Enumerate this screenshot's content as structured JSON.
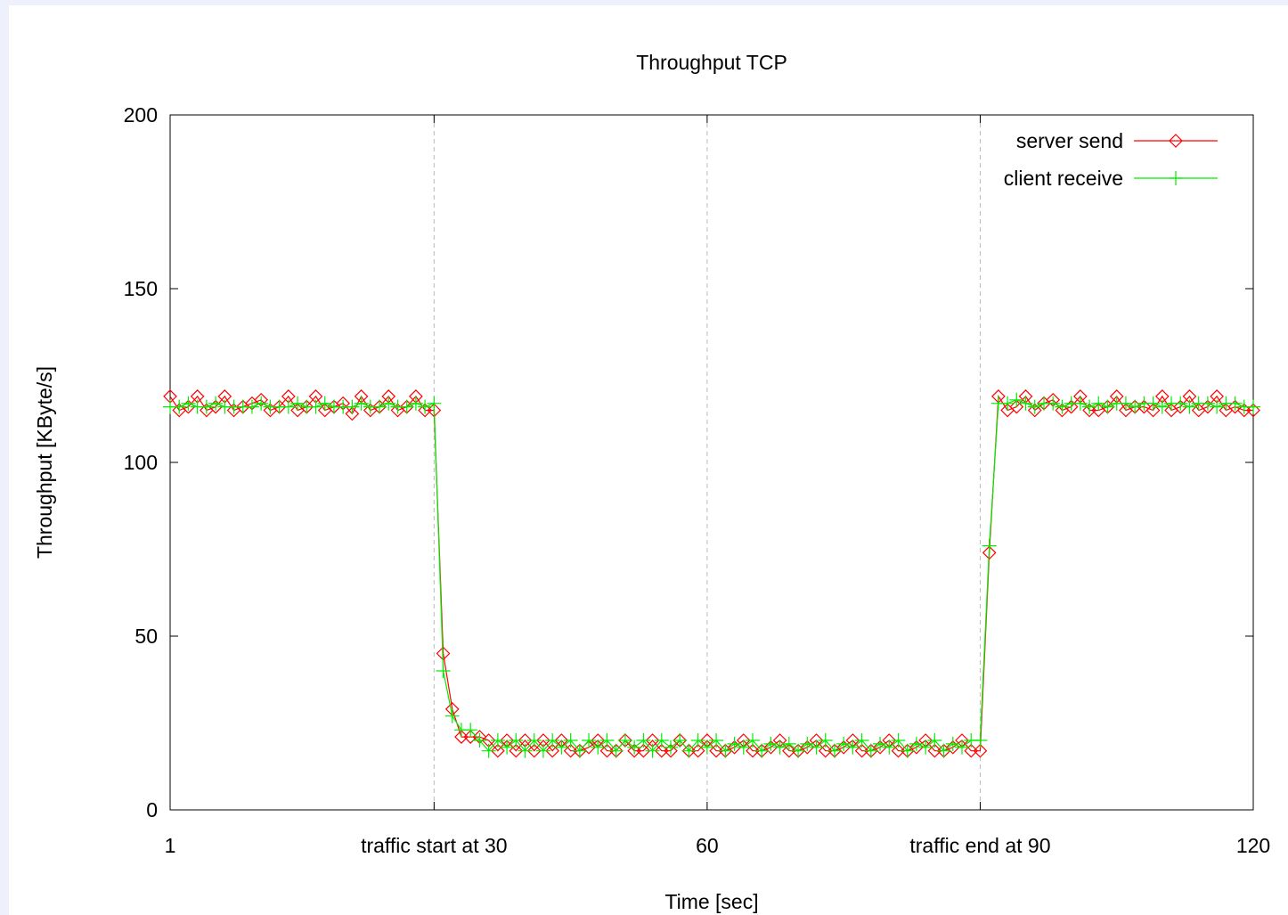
{
  "chart_data": {
    "type": "line",
    "title": "Throughput TCP",
    "xlabel": "Time [sec]",
    "ylabel": "Throughput [KByte/s]",
    "xlim": [
      1,
      120
    ],
    "ylim": [
      0,
      200
    ],
    "x_ticks": [
      {
        "value": 1,
        "label": "1"
      },
      {
        "value": 30,
        "label": "traffic start at 30"
      },
      {
        "value": 60,
        "label": "60"
      },
      {
        "value": 90,
        "label": "traffic end at 90"
      },
      {
        "value": 120,
        "label": "120"
      }
    ],
    "y_ticks": [
      {
        "value": 0,
        "label": "0"
      },
      {
        "value": 50,
        "label": "50"
      },
      {
        "value": 100,
        "label": "100"
      },
      {
        "value": 150,
        "label": "150"
      },
      {
        "value": 200,
        "label": "200"
      }
    ],
    "vertical_grid_at": [
      30,
      60,
      90
    ],
    "legend_position": "top-right",
    "series": [
      {
        "name": "server send",
        "color": "#ff0000",
        "marker": "diamond",
        "x": [
          1,
          2,
          3,
          4,
          5,
          6,
          7,
          8,
          9,
          10,
          11,
          12,
          13,
          14,
          15,
          16,
          17,
          18,
          19,
          20,
          21,
          22,
          23,
          24,
          25,
          26,
          27,
          28,
          29,
          30,
          31,
          32,
          33,
          34,
          35,
          36,
          37,
          38,
          39,
          40,
          41,
          42,
          43,
          44,
          45,
          46,
          47,
          48,
          49,
          50,
          51,
          52,
          53,
          54,
          55,
          56,
          57,
          58,
          59,
          60,
          61,
          62,
          63,
          64,
          65,
          66,
          67,
          68,
          69,
          70,
          71,
          72,
          73,
          74,
          75,
          76,
          77,
          78,
          79,
          80,
          81,
          82,
          83,
          84,
          85,
          86,
          87,
          88,
          89,
          90,
          91,
          92,
          93,
          94,
          95,
          96,
          97,
          98,
          99,
          100,
          101,
          102,
          103,
          104,
          105,
          106,
          107,
          108,
          109,
          110,
          111,
          112,
          113,
          114,
          115,
          116,
          117,
          118,
          119,
          120
        ],
        "y": [
          119,
          115,
          116,
          119,
          115,
          116,
          119,
          115,
          116,
          117,
          118,
          115,
          116,
          119,
          115,
          116,
          119,
          115,
          116,
          117,
          114,
          119,
          115,
          116,
          119,
          115,
          116,
          119,
          115,
          115,
          45,
          29,
          21,
          21,
          21,
          20,
          17,
          20,
          17,
          20,
          17,
          20,
          17,
          20,
          17,
          17,
          18,
          20,
          17,
          17,
          20,
          17,
          17,
          20,
          17,
          17,
          20,
          17,
          17,
          20,
          17,
          17,
          18,
          20,
          17,
          17,
          18,
          20,
          17,
          17,
          18,
          20,
          17,
          17,
          18,
          20,
          17,
          17,
          18,
          20,
          17,
          17,
          18,
          20,
          17,
          17,
          18,
          20,
          17,
          17,
          74,
          119,
          115,
          116,
          119,
          115,
          117,
          118,
          115,
          116,
          119,
          115,
          115,
          116,
          119,
          115,
          116,
          116,
          115,
          119,
          115,
          116,
          119,
          115,
          116,
          119,
          115,
          116,
          115,
          115
        ]
      },
      {
        "name": "client receive",
        "color": "#00ee00",
        "marker": "plus",
        "x": [
          1,
          2,
          3,
          4,
          5,
          6,
          7,
          8,
          9,
          10,
          11,
          12,
          13,
          14,
          15,
          16,
          17,
          18,
          19,
          20,
          21,
          22,
          23,
          24,
          25,
          26,
          27,
          28,
          29,
          30,
          31,
          32,
          33,
          34,
          35,
          36,
          37,
          38,
          39,
          40,
          41,
          42,
          43,
          44,
          45,
          46,
          47,
          48,
          49,
          50,
          51,
          52,
          53,
          54,
          55,
          56,
          57,
          58,
          59,
          60,
          61,
          62,
          63,
          64,
          65,
          66,
          67,
          68,
          69,
          70,
          71,
          72,
          73,
          74,
          75,
          76,
          77,
          78,
          79,
          80,
          81,
          82,
          83,
          84,
          85,
          86,
          87,
          88,
          89,
          90,
          91,
          92,
          93,
          94,
          95,
          96,
          97,
          98,
          99,
          100,
          101,
          102,
          103,
          104,
          105,
          106,
          107,
          108,
          109,
          110,
          111,
          112,
          113,
          114,
          115,
          116,
          117,
          118,
          119,
          120
        ],
        "y": [
          116,
          116,
          117,
          116,
          116,
          117,
          116,
          116,
          116,
          116,
          117,
          116,
          116,
          116,
          117,
          116,
          116,
          117,
          116,
          116,
          116,
          117,
          116,
          116,
          117,
          116,
          116,
          117,
          116,
          117,
          40,
          27,
          23,
          23,
          20,
          17,
          20,
          18,
          20,
          17,
          20,
          17,
          20,
          18,
          20,
          17,
          20,
          18,
          20,
          17,
          20,
          18,
          20,
          17,
          20,
          18,
          20,
          17,
          20,
          18,
          20,
          17,
          19,
          18,
          20,
          17,
          19,
          18,
          19,
          17,
          19,
          18,
          20,
          17,
          19,
          18,
          20,
          17,
          19,
          18,
          20,
          17,
          19,
          18,
          20,
          17,
          19,
          18,
          20,
          20,
          76,
          117,
          117,
          118,
          117,
          116,
          117,
          117,
          116,
          117,
          117,
          116,
          117,
          116,
          117,
          117,
          116,
          117,
          117,
          116,
          117,
          117,
          116,
          117,
          117,
          116,
          117,
          117,
          116,
          116
        ]
      }
    ]
  }
}
